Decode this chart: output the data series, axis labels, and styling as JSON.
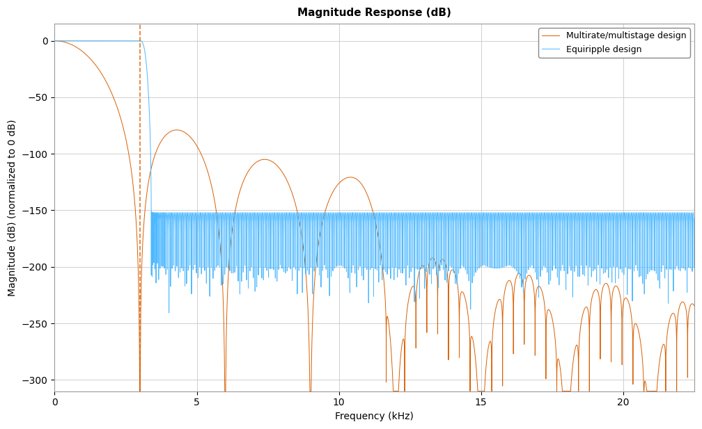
{
  "title": "Magnitude Response (dB)",
  "xlabel": "Frequency (kHz)",
  "ylabel": "Magnitude (dB) (normalized to 0 dB)",
  "xlim": [
    0,
    22.5
  ],
  "ylim": [
    -310,
    15
  ],
  "yticks": [
    0,
    -50,
    -100,
    -150,
    -200,
    -250,
    -300
  ],
  "xticks": [
    0,
    5,
    10,
    15,
    20
  ],
  "legend_labels": [
    "Equiripple design",
    "Multirate/multistage design"
  ],
  "color_blue": "#4db8ff",
  "color_orange": "#d95f02",
  "dashed_x": 3.0,
  "background_color": "#ffffff",
  "grid_color": "#c8c8c8",
  "title_fontsize": 11,
  "label_fontsize": 10,
  "tick_fontsize": 10
}
